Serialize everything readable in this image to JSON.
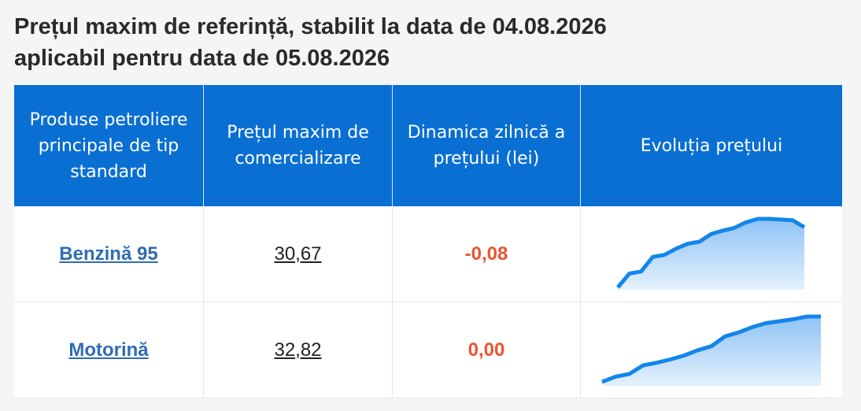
{
  "header": {
    "title_line1": "Prețul maxim de referință, stabilit la data de 04.08.2026",
    "title_line2": "aplicabil pentru data de 05.08.2026"
  },
  "table": {
    "headers": [
      "Produse petroliere principale de tip standard",
      "Prețul maxim de comercializare",
      "Dinamica zilnică a prețului (lei)",
      "Evoluția prețului"
    ],
    "rows": [
      {
        "product": "Benzină 95",
        "price": "30,67",
        "change": "-0,08",
        "trend": [
          0,
          20,
          23,
          44,
          47,
          56,
          63,
          66,
          77,
          82,
          86,
          94,
          99,
          99,
          98,
          97,
          87
        ]
      },
      {
        "product": "Motorină",
        "price": "32,82",
        "change": "0,00",
        "trend": [
          0,
          8,
          12,
          25,
          29,
          34,
          40,
          48,
          54,
          69,
          75,
          83,
          89,
          92,
          95,
          99,
          99
        ]
      }
    ]
  }
}
